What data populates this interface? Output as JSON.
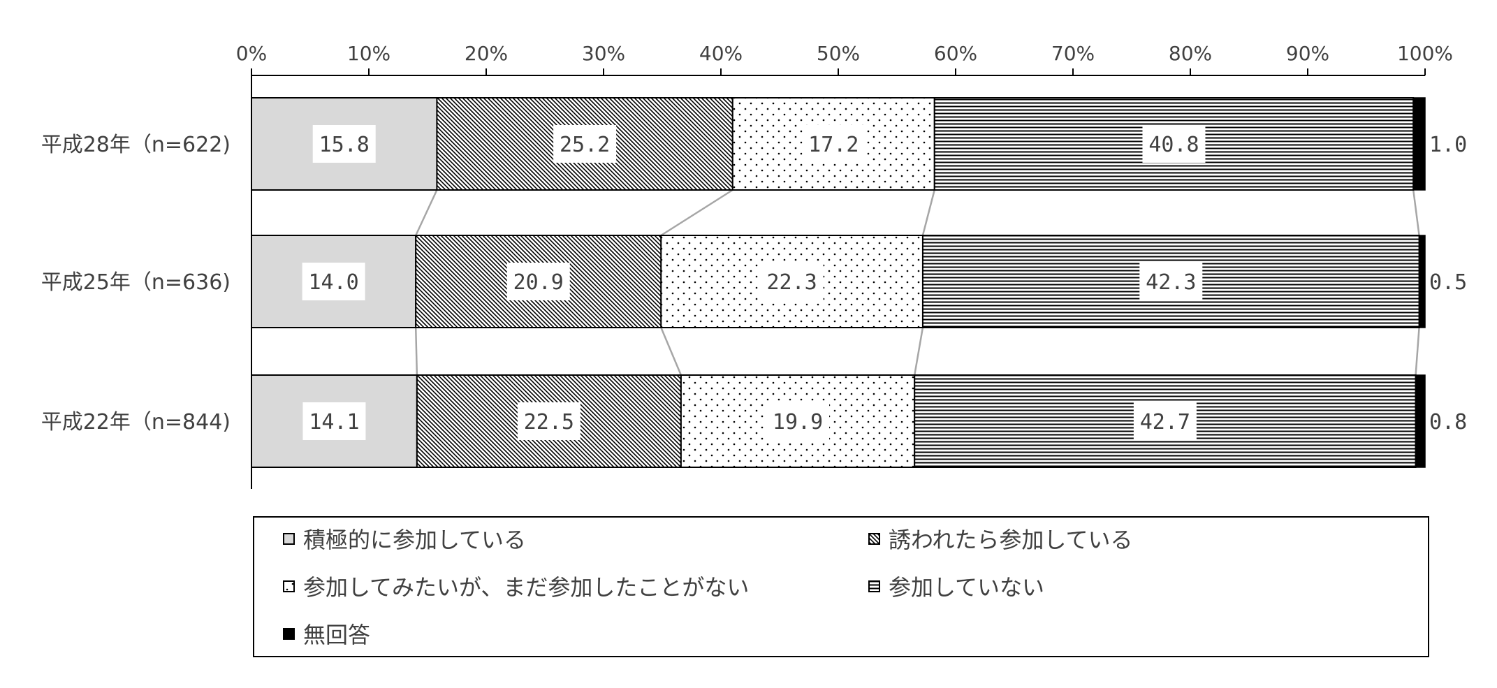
{
  "chart_data": {
    "type": "bar",
    "orientation": "horizontal",
    "stacked": "percent",
    "x_ticks": [
      "0%",
      "10%",
      "20%",
      "30%",
      "40%",
      "50%",
      "60%",
      "70%",
      "80%",
      "90%",
      "100%"
    ],
    "xlim": [
      0,
      100
    ],
    "grid": false,
    "legend_position": "bottom",
    "categories": [
      "平成28年（n=622)",
      "平成25年（n=636)",
      "平成22年（n=844)"
    ],
    "series": [
      {
        "name": "積極的に参加している",
        "values": [
          15.8,
          14.0,
          14.1
        ],
        "labels": [
          "15.8",
          "14.0",
          "14.1"
        ],
        "fill": "solid",
        "color": "#d9d9d9"
      },
      {
        "name": "誘われたら参加している",
        "values": [
          25.2,
          20.9,
          22.5
        ],
        "labels": [
          "25.2",
          "20.9",
          "22.5"
        ],
        "fill": "diagonal-hatch",
        "color": "#000000"
      },
      {
        "name": "参加してみたいが、まだ参加したことがない",
        "values": [
          17.2,
          22.3,
          19.9
        ],
        "labels": [
          "17.2",
          "22.3",
          "19.9"
        ],
        "fill": "dots",
        "color": "#000000"
      },
      {
        "name": "参加していない",
        "values": [
          40.8,
          42.3,
          42.7
        ],
        "labels": [
          "40.8",
          "42.3",
          "42.7"
        ],
        "fill": "horizontal-lines",
        "color": "#000000"
      },
      {
        "name": "無回答",
        "values": [
          1.0,
          0.5,
          0.8
        ],
        "labels": [
          "1.0",
          "0.5",
          "0.8"
        ],
        "fill": "solid",
        "color": "#000000"
      }
    ],
    "series_lines": true
  }
}
